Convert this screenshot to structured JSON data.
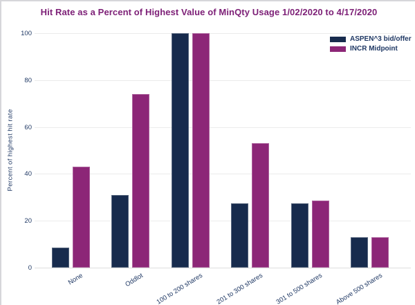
{
  "title": "Hit Rate as a Percent of Highest Value of MinQty Usage 1/02/2020 to 4/17/2020",
  "chart_data": {
    "type": "bar",
    "title": "Hit Rate as a Percent of Highest Value of MinQty Usage 1/02/2020 to 4/17/2020",
    "categories": [
      "None",
      "Oddlot",
      "100 to 200 shares",
      "201 to  300 shares",
      "301 to 500 shares",
      "Above 500 shares"
    ],
    "series": [
      {
        "name": "ASPEN^3 bid/offer",
        "color": "#172b4d",
        "values": [
          8.5,
          31,
          100,
          27.5,
          27.5,
          13
        ]
      },
      {
        "name": "INCR Midpoint",
        "color": "#8c2677",
        "values": [
          43,
          74,
          100,
          53,
          28.5,
          13
        ]
      }
    ],
    "ylabel": "Percent  of highest  hit rate",
    "xlabel": "",
    "ylim": [
      0,
      100
    ],
    "yticks": [
      0,
      20,
      40,
      60,
      80,
      100
    ],
    "grid": true,
    "legend_position": "top-right"
  },
  "colors": {
    "title": "#7d2077",
    "axis_text": "#1f3864",
    "series_1": "#172b4d",
    "series_2": "#8c2677",
    "gridline": "#ebebeb",
    "background": "#ffffff"
  }
}
